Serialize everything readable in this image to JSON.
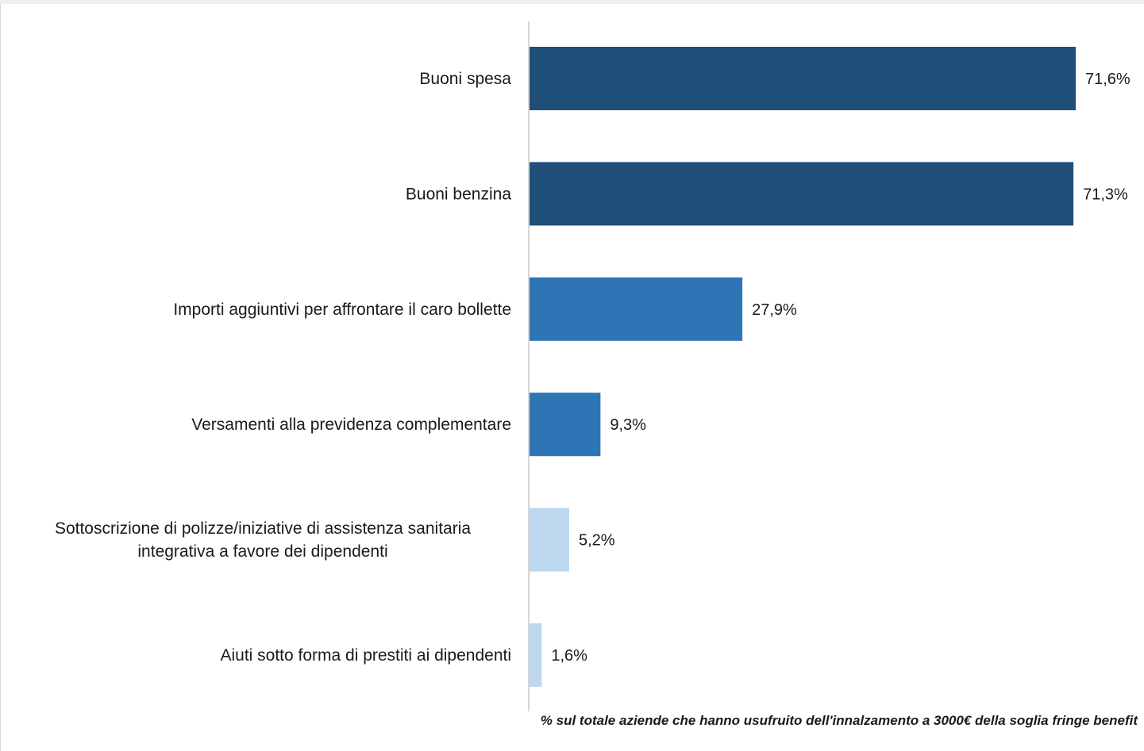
{
  "chart_data": {
    "type": "bar",
    "orientation": "horizontal",
    "categories": [
      [
        "Buoni spesa"
      ],
      [
        "Buoni benzina"
      ],
      [
        "Importi aggiuntivi per affrontare il caro bollette"
      ],
      [
        "Versamenti alla previdenza complementare"
      ],
      [
        "Sottoscrizione di polizze/iniziative di assistenza sanitaria",
        "integrativa a favore dei dipendenti"
      ],
      [
        "Aiuti sotto forma di prestiti ai dipendenti"
      ]
    ],
    "values": [
      71.6,
      71.3,
      27.9,
      9.3,
      5.2,
      1.6
    ],
    "value_labels": [
      "71,6%",
      "71,3%",
      "27,9%",
      "9,3%",
      "5,2%",
      "1,6%"
    ],
    "bar_colors": [
      "#1f4e79",
      "#1f4e79",
      "#2e75b6",
      "#2e75b6",
      "#bdd7ee",
      "#bdd7ee"
    ],
    "xlim": [
      0,
      80
    ],
    "grid": false,
    "footnote": "% sul totale aziende che hanno usufruito dell'innalzamento a 3000€ della soglia fringe benefit"
  }
}
